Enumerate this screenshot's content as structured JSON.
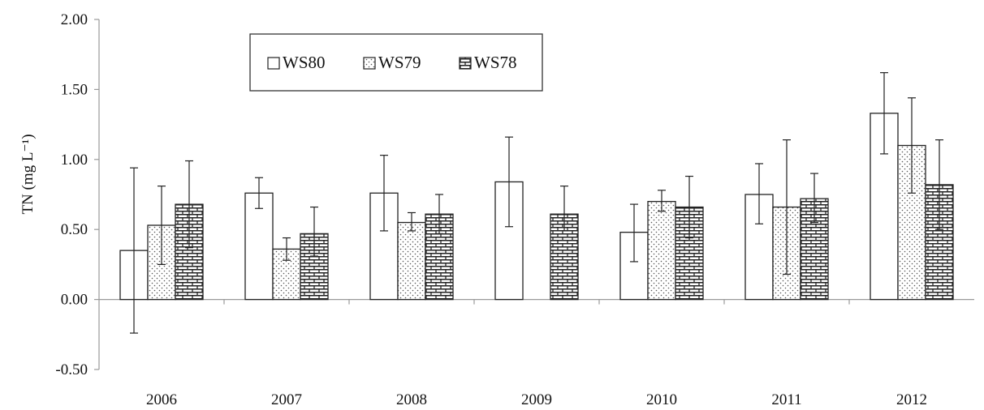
{
  "chart_data": {
    "type": "bar",
    "title": "",
    "xlabel": "",
    "ylabel": "TN (mg L⁻¹)",
    "ylim": [
      -0.5,
      2.0
    ],
    "yticks": [
      "2.00",
      "1.50",
      "1.00",
      "0.50",
      "0.00",
      "-0.50"
    ],
    "ytick_values": [
      2.0,
      1.5,
      1.0,
      0.5,
      0.0,
      -0.5
    ],
    "categories": [
      "2006",
      "2007",
      "2008",
      "2009",
      "2010",
      "2011",
      "2012"
    ],
    "grid": false,
    "legend_position": "top-left",
    "series": [
      {
        "name": "WS80",
        "pattern": "plain",
        "values": [
          0.35,
          0.76,
          0.76,
          0.84,
          0.48,
          0.75,
          1.33
        ],
        "err_low": [
          -0.24,
          0.65,
          0.49,
          0.52,
          0.27,
          0.54,
          1.04
        ],
        "err_high": [
          0.94,
          0.87,
          1.03,
          1.16,
          0.68,
          0.97,
          1.62
        ]
      },
      {
        "name": "WS79",
        "pattern": "dots",
        "values": [
          0.53,
          0.36,
          0.55,
          null,
          0.7,
          0.66,
          1.1
        ],
        "err_low": [
          0.25,
          0.28,
          0.49,
          null,
          0.63,
          0.18,
          0.76
        ],
        "err_high": [
          0.81,
          0.44,
          0.62,
          null,
          0.78,
          1.14,
          1.44
        ]
      },
      {
        "name": "WS78",
        "pattern": "bricks",
        "values": [
          0.68,
          0.47,
          0.61,
          0.61,
          0.66,
          0.72,
          0.82
        ],
        "err_low": [
          0.37,
          0.31,
          0.47,
          0.49,
          0.44,
          0.55,
          0.5
        ],
        "err_high": [
          0.99,
          0.66,
          0.75,
          0.81,
          0.88,
          0.9,
          1.14
        ]
      }
    ]
  }
}
